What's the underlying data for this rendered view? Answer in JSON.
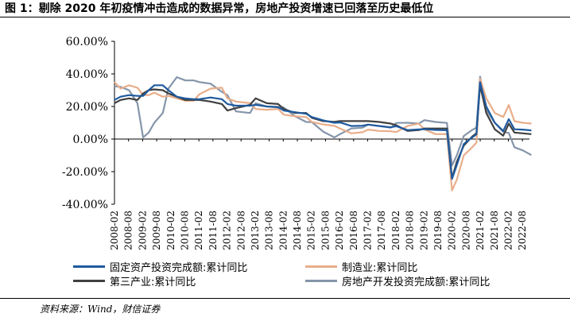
{
  "header": {
    "title": "图 1：剔除 2020 年初疫情冲击造成的数据异常，房地产投资增速已回落至历史最低位"
  },
  "footer": {
    "source": "资料来源：Wind，财信证券"
  },
  "colors": {
    "fixed_asset": "#1f5a9e",
    "manufacturing": "#e8ae8a",
    "tertiary": "#404040",
    "real_estate": "#8595aa"
  },
  "chart_data": {
    "type": "line",
    "title": "",
    "xlabel": "",
    "ylabel": "",
    "ylim": [
      -40,
      60
    ],
    "yticks": [
      "60.00%",
      "40.00%",
      "20.00%",
      "0.00%",
      "-20.00%",
      "-40.00%"
    ],
    "ytick_values": [
      60,
      40,
      20,
      0,
      -20,
      -40
    ],
    "xticks": [
      "2008-02",
      "2008-08",
      "2009-02",
      "2009-08",
      "2010-02",
      "2010-08",
      "2011-02",
      "2011-08",
      "2012-02",
      "2012-08",
      "2013-02",
      "2013-08",
      "2014-02",
      "2014-08",
      "2015-02",
      "2015-08",
      "2016-02",
      "2016-08",
      "2017-02",
      "2017-08",
      "2018-02",
      "2018-08",
      "2019-02",
      "2019-08",
      "2020-02",
      "2020-08",
      "2021-02",
      "2021-08",
      "2022-02",
      "2022-08"
    ],
    "x_start": "2008-02",
    "x_end": "2022-11",
    "series": [
      {
        "name": "固定资产投资完成额:累计同比",
        "color_key": "fixed_asset",
        "points": [
          [
            2008.08,
            24
          ],
          [
            2008.3,
            26
          ],
          [
            2008.6,
            27
          ],
          [
            2008.9,
            26.5
          ],
          [
            2009.1,
            26.5
          ],
          [
            2009.3,
            30
          ],
          [
            2009.5,
            33
          ],
          [
            2009.8,
            33
          ],
          [
            2010.0,
            30
          ],
          [
            2010.3,
            26
          ],
          [
            2010.6,
            25
          ],
          [
            2010.9,
            24.5
          ],
          [
            2011.1,
            24.5
          ],
          [
            2011.5,
            25.5
          ],
          [
            2011.9,
            24.5
          ],
          [
            2012.1,
            21.5
          ],
          [
            2012.4,
            20.5
          ],
          [
            2012.9,
            20.5
          ],
          [
            2013.1,
            21
          ],
          [
            2013.5,
            20
          ],
          [
            2013.9,
            19.5
          ],
          [
            2014.1,
            17.5
          ],
          [
            2014.5,
            16.5
          ],
          [
            2014.9,
            15.5
          ],
          [
            2015.1,
            13.5
          ],
          [
            2015.5,
            11.5
          ],
          [
            2015.9,
            10
          ],
          [
            2016.1,
            10.2
          ],
          [
            2016.5,
            8
          ],
          [
            2016.9,
            8.2
          ],
          [
            2017.1,
            8.9
          ],
          [
            2017.5,
            8
          ],
          [
            2017.9,
            7.2
          ],
          [
            2018.1,
            7.9
          ],
          [
            2018.5,
            5.5
          ],
          [
            2018.9,
            5.9
          ],
          [
            2019.1,
            6.1
          ],
          [
            2019.5,
            5.6
          ],
          [
            2019.9,
            5.4
          ],
          [
            2020.08,
            -24.5
          ],
          [
            2020.25,
            -16
          ],
          [
            2020.5,
            -3
          ],
          [
            2020.8,
            1
          ],
          [
            2020.95,
            2.9
          ],
          [
            2021.08,
            35
          ],
          [
            2021.3,
            20
          ],
          [
            2021.6,
            10
          ],
          [
            2021.9,
            5
          ],
          [
            2022.1,
            12.2
          ],
          [
            2022.3,
            6
          ],
          [
            2022.6,
            5.8
          ],
          [
            2022.9,
            5.3
          ]
        ]
      },
      {
        "name": "制造业:累计同比",
        "color_key": "manufacturing",
        "points": [
          [
            2008.08,
            35
          ],
          [
            2008.3,
            31
          ],
          [
            2008.6,
            33
          ],
          [
            2008.9,
            31.5
          ],
          [
            2009.1,
            27
          ],
          [
            2009.3,
            27
          ],
          [
            2009.5,
            28.5
          ],
          [
            2009.8,
            26
          ],
          [
            2010.0,
            26.5
          ],
          [
            2010.3,
            25
          ],
          [
            2010.6,
            23.5
          ],
          [
            2010.9,
            23.5
          ],
          [
            2011.1,
            27.5
          ],
          [
            2011.5,
            31
          ],
          [
            2011.9,
            31.5
          ],
          [
            2012.1,
            25
          ],
          [
            2012.4,
            23
          ],
          [
            2012.9,
            22
          ],
          [
            2013.1,
            18.5
          ],
          [
            2013.5,
            18
          ],
          [
            2013.9,
            18.5
          ],
          [
            2014.1,
            15
          ],
          [
            2014.5,
            14
          ],
          [
            2014.9,
            13.5
          ],
          [
            2015.1,
            10.5
          ],
          [
            2015.5,
            9
          ],
          [
            2015.9,
            8.1
          ],
          [
            2016.1,
            6.5
          ],
          [
            2016.5,
            3.5
          ],
          [
            2016.9,
            4.2
          ],
          [
            2017.1,
            5.8
          ],
          [
            2017.5,
            5
          ],
          [
            2017.9,
            4.8
          ],
          [
            2018.1,
            4.3
          ],
          [
            2018.5,
            8
          ],
          [
            2018.9,
            9.5
          ],
          [
            2019.1,
            5.9
          ],
          [
            2019.5,
            3
          ],
          [
            2019.9,
            3.1
          ],
          [
            2020.08,
            -31.5
          ],
          [
            2020.25,
            -25
          ],
          [
            2020.5,
            -10
          ],
          [
            2020.8,
            -5
          ],
          [
            2020.95,
            -2.2
          ],
          [
            2021.08,
            37
          ],
          [
            2021.3,
            25
          ],
          [
            2021.6,
            16
          ],
          [
            2021.9,
            13.5
          ],
          [
            2022.1,
            20.9
          ],
          [
            2022.3,
            11
          ],
          [
            2022.6,
            10
          ],
          [
            2022.9,
            9.5
          ]
        ]
      },
      {
        "name": "第三产业:累计同比",
        "color_key": "tertiary",
        "points": [
          [
            2008.08,
            22
          ],
          [
            2008.3,
            24
          ],
          [
            2008.6,
            25
          ],
          [
            2008.9,
            24
          ],
          [
            2009.1,
            28
          ],
          [
            2009.3,
            30
          ],
          [
            2009.5,
            30.5
          ],
          [
            2009.8,
            30
          ],
          [
            2010.0,
            28
          ],
          [
            2010.3,
            26
          ],
          [
            2010.6,
            24
          ],
          [
            2010.9,
            24
          ],
          [
            2011.1,
            24
          ],
          [
            2011.5,
            23
          ],
          [
            2011.9,
            21.5
          ],
          [
            2012.1,
            17.5
          ],
          [
            2012.4,
            19
          ],
          [
            2012.9,
            21
          ],
          [
            2013.1,
            25
          ],
          [
            2013.5,
            22
          ],
          [
            2013.9,
            21.5
          ],
          [
            2014.1,
            18.5
          ],
          [
            2014.5,
            16
          ],
          [
            2014.9,
            16
          ],
          [
            2015.1,
            13
          ],
          [
            2015.5,
            11
          ],
          [
            2015.9,
            10.6
          ],
          [
            2016.1,
            11
          ],
          [
            2016.5,
            11
          ],
          [
            2016.9,
            11
          ],
          [
            2017.1,
            11
          ],
          [
            2017.5,
            10.5
          ],
          [
            2017.9,
            9.5
          ],
          [
            2018.1,
            8.5
          ],
          [
            2018.5,
            5
          ],
          [
            2018.9,
            5.5
          ],
          [
            2019.1,
            6.5
          ],
          [
            2019.5,
            6.5
          ],
          [
            2019.9,
            6.5
          ],
          [
            2020.08,
            -24
          ],
          [
            2020.25,
            -14
          ],
          [
            2020.5,
            -4
          ],
          [
            2020.8,
            1.5
          ],
          [
            2020.95,
            3.6
          ],
          [
            2021.08,
            33
          ],
          [
            2021.3,
            16
          ],
          [
            2021.6,
            6
          ],
          [
            2021.9,
            2.1
          ],
          [
            2022.1,
            9.4
          ],
          [
            2022.3,
            4
          ],
          [
            2022.6,
            3.5
          ],
          [
            2022.9,
            3
          ]
        ]
      },
      {
        "name": "房地产开发投资完成额:累计同比",
        "color_key": "real_estate",
        "points": [
          [
            2008.08,
            32.5
          ],
          [
            2008.3,
            32
          ],
          [
            2008.6,
            30
          ],
          [
            2008.9,
            22
          ],
          [
            2009.1,
            1
          ],
          [
            2009.3,
            4
          ],
          [
            2009.5,
            10
          ],
          [
            2009.8,
            16
          ],
          [
            2010.0,
            31
          ],
          [
            2010.3,
            38
          ],
          [
            2010.6,
            36
          ],
          [
            2010.9,
            36
          ],
          [
            2011.1,
            35
          ],
          [
            2011.5,
            34
          ],
          [
            2011.9,
            29
          ],
          [
            2012.1,
            27
          ],
          [
            2012.4,
            17
          ],
          [
            2012.9,
            16
          ],
          [
            2013.1,
            22
          ],
          [
            2013.5,
            20
          ],
          [
            2013.9,
            19.8
          ],
          [
            2014.1,
            19.3
          ],
          [
            2014.5,
            14
          ],
          [
            2014.9,
            10.5
          ],
          [
            2015.1,
            10.4
          ],
          [
            2015.5,
            4.6
          ],
          [
            2015.9,
            1
          ],
          [
            2016.1,
            3
          ],
          [
            2016.5,
            6.5
          ],
          [
            2016.9,
            7
          ],
          [
            2017.1,
            8.9
          ],
          [
            2017.5,
            8
          ],
          [
            2017.9,
            7
          ],
          [
            2018.1,
            9.9
          ],
          [
            2018.5,
            10
          ],
          [
            2018.9,
            9.5
          ],
          [
            2019.1,
            11.6
          ],
          [
            2019.5,
            10.5
          ],
          [
            2019.9,
            9.9
          ],
          [
            2020.08,
            -16.3
          ],
          [
            2020.25,
            -10
          ],
          [
            2020.5,
            1.9
          ],
          [
            2020.8,
            5.6
          ],
          [
            2020.95,
            7
          ],
          [
            2021.08,
            38.3
          ],
          [
            2021.3,
            18
          ],
          [
            2021.6,
            10
          ],
          [
            2021.9,
            4.4
          ],
          [
            2022.1,
            3.7
          ],
          [
            2022.3,
            -5
          ],
          [
            2022.6,
            -7
          ],
          [
            2022.9,
            -9.8
          ]
        ]
      }
    ],
    "legend_position": "bottom"
  },
  "legend": [
    {
      "label": "固定资产投资完成额:累计同比",
      "color_key": "fixed_asset"
    },
    {
      "label": "制造业:累计同比",
      "color_key": "manufacturing"
    },
    {
      "label": "第三产业:累计同比",
      "color_key": "tertiary"
    },
    {
      "label": "房地产开发投资完成额:累计同比",
      "color_key": "real_estate"
    }
  ]
}
